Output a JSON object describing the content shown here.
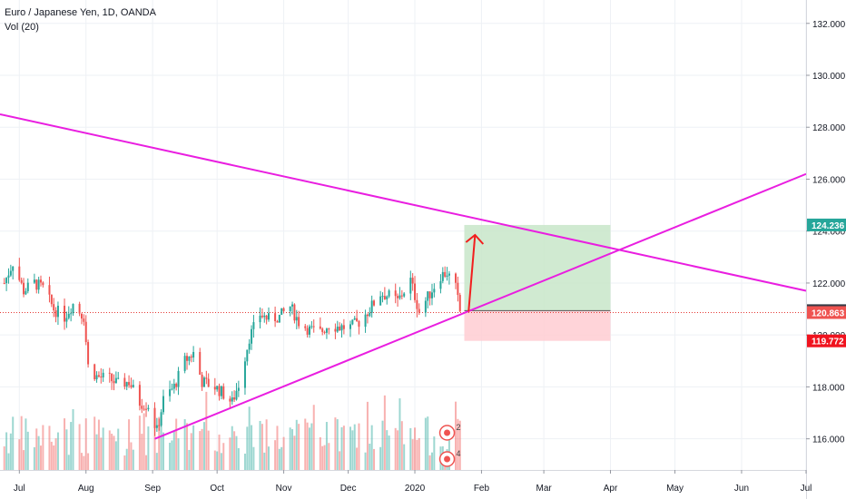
{
  "legend": {
    "symbol_line": "Euro / Japanese Yen, 1D, OANDA",
    "volume_line": "Vol (20)"
  },
  "colors": {
    "up": "#26a69a",
    "down": "#ef5350",
    "trendline": "#e91ee0",
    "arrow": "#f21e1e",
    "target_zone": "#c8e6c9",
    "stop_zone": "#ffcdd2",
    "price_line": "#e53935",
    "grid": "#eef1f5",
    "axis_text": "#131722"
  },
  "chart_data": {
    "type": "candlestick",
    "title": "Euro / Japanese Yen, 1D, OANDA",
    "y_axis": {
      "ticks": [
        "116.000",
        "118.000",
        "120.000",
        "122.000",
        "124.000",
        "126.000",
        "128.000",
        "130.000",
        "132.000"
      ],
      "ylim": [
        114.8,
        132.9
      ]
    },
    "x_axis": {
      "ticks": [
        "Jul",
        "Aug",
        "Sep",
        "Oct",
        "Nov",
        "Dec",
        "2020",
        "Feb",
        "Mar",
        "Apr",
        "May",
        "Jun",
        "Jul"
      ],
      "range": [
        "2019-06-22",
        "2020-07-01"
      ]
    },
    "price_labels": [
      {
        "text": "124.236",
        "value": 124.236,
        "color": "#26a69a"
      },
      {
        "text": "120.936",
        "value": 120.936,
        "color": "#363a45"
      },
      {
        "text": "120.863",
        "value": 120.863,
        "color": "#ef5350"
      },
      {
        "text": "119.772",
        "value": 119.772,
        "color": "#f0131e"
      }
    ],
    "last_price": 120.863,
    "ohlc_path": [
      [
        "2019-06-24",
        122.0
      ],
      [
        "2019-06-28",
        122.8
      ],
      [
        "2019-07-03",
        121.7
      ],
      [
        "2019-07-08",
        122.0
      ],
      [
        "2019-07-12",
        121.8
      ],
      [
        "2019-07-17",
        121.0
      ],
      [
        "2019-07-22",
        120.7
      ],
      [
        "2019-07-26",
        121.2
      ],
      [
        "2019-07-31",
        120.7
      ],
      [
        "2019-08-02",
        118.8
      ],
      [
        "2019-08-06",
        118.4
      ],
      [
        "2019-08-12",
        118.3
      ],
      [
        "2019-08-16",
        118.1
      ],
      [
        "2019-08-21",
        118.2
      ],
      [
        "2019-08-26",
        117.4
      ],
      [
        "2019-08-30",
        117.3
      ],
      [
        "2019-09-03",
        116.3
      ],
      [
        "2019-09-06",
        117.5
      ],
      [
        "2019-09-11",
        118.0
      ],
      [
        "2019-09-16",
        119.0
      ],
      [
        "2019-09-20",
        119.3
      ],
      [
        "2019-09-24",
        118.2
      ],
      [
        "2019-09-30",
        118.0
      ],
      [
        "2019-10-03",
        117.8
      ],
      [
        "2019-10-08",
        117.4
      ],
      [
        "2019-10-11",
        118.1
      ],
      [
        "2019-10-16",
        119.9
      ],
      [
        "2019-10-21",
        120.8
      ],
      [
        "2019-10-25",
        120.6
      ],
      [
        "2019-10-30",
        120.7
      ],
      [
        "2019-11-04",
        121.1
      ],
      [
        "2019-11-08",
        120.5
      ],
      [
        "2019-11-13",
        120.2
      ],
      [
        "2019-11-18",
        120.1
      ],
      [
        "2019-11-22",
        120.4
      ],
      [
        "2019-11-27",
        120.3
      ],
      [
        "2019-12-02",
        120.3
      ],
      [
        "2019-12-06",
        120.5
      ],
      [
        "2019-12-11",
        121.0
      ],
      [
        "2019-12-16",
        121.6
      ],
      [
        "2019-12-20",
        121.5
      ],
      [
        "2019-12-24",
        121.3
      ],
      [
        "2019-12-30",
        122.1
      ],
      [
        "2020-01-03",
        120.9
      ],
      [
        "2020-01-08",
        121.6
      ],
      [
        "2020-01-13",
        122.3
      ],
      [
        "2020-01-16",
        122.4
      ],
      [
        "2020-01-20",
        121.8
      ],
      [
        "2020-01-22",
        120.9
      ]
    ],
    "drawings": {
      "descending_trendline": [
        [
          "2019-06-22",
          128.5
        ],
        [
          "2020-07-01",
          121.7
        ]
      ],
      "ascending_trendline": [
        [
          "2019-09-02",
          116.0
        ],
        [
          "2020-07-01",
          126.2
        ]
      ],
      "long_position": {
        "from": "2020-01-24",
        "to": "2020-04-01",
        "entry": 120.936,
        "target": 124.236,
        "stop": 119.772
      },
      "arrow": {
        "from": [
          "2020-01-26",
          120.9
        ],
        "to": [
          "2020-01-29",
          123.85
        ]
      }
    }
  }
}
